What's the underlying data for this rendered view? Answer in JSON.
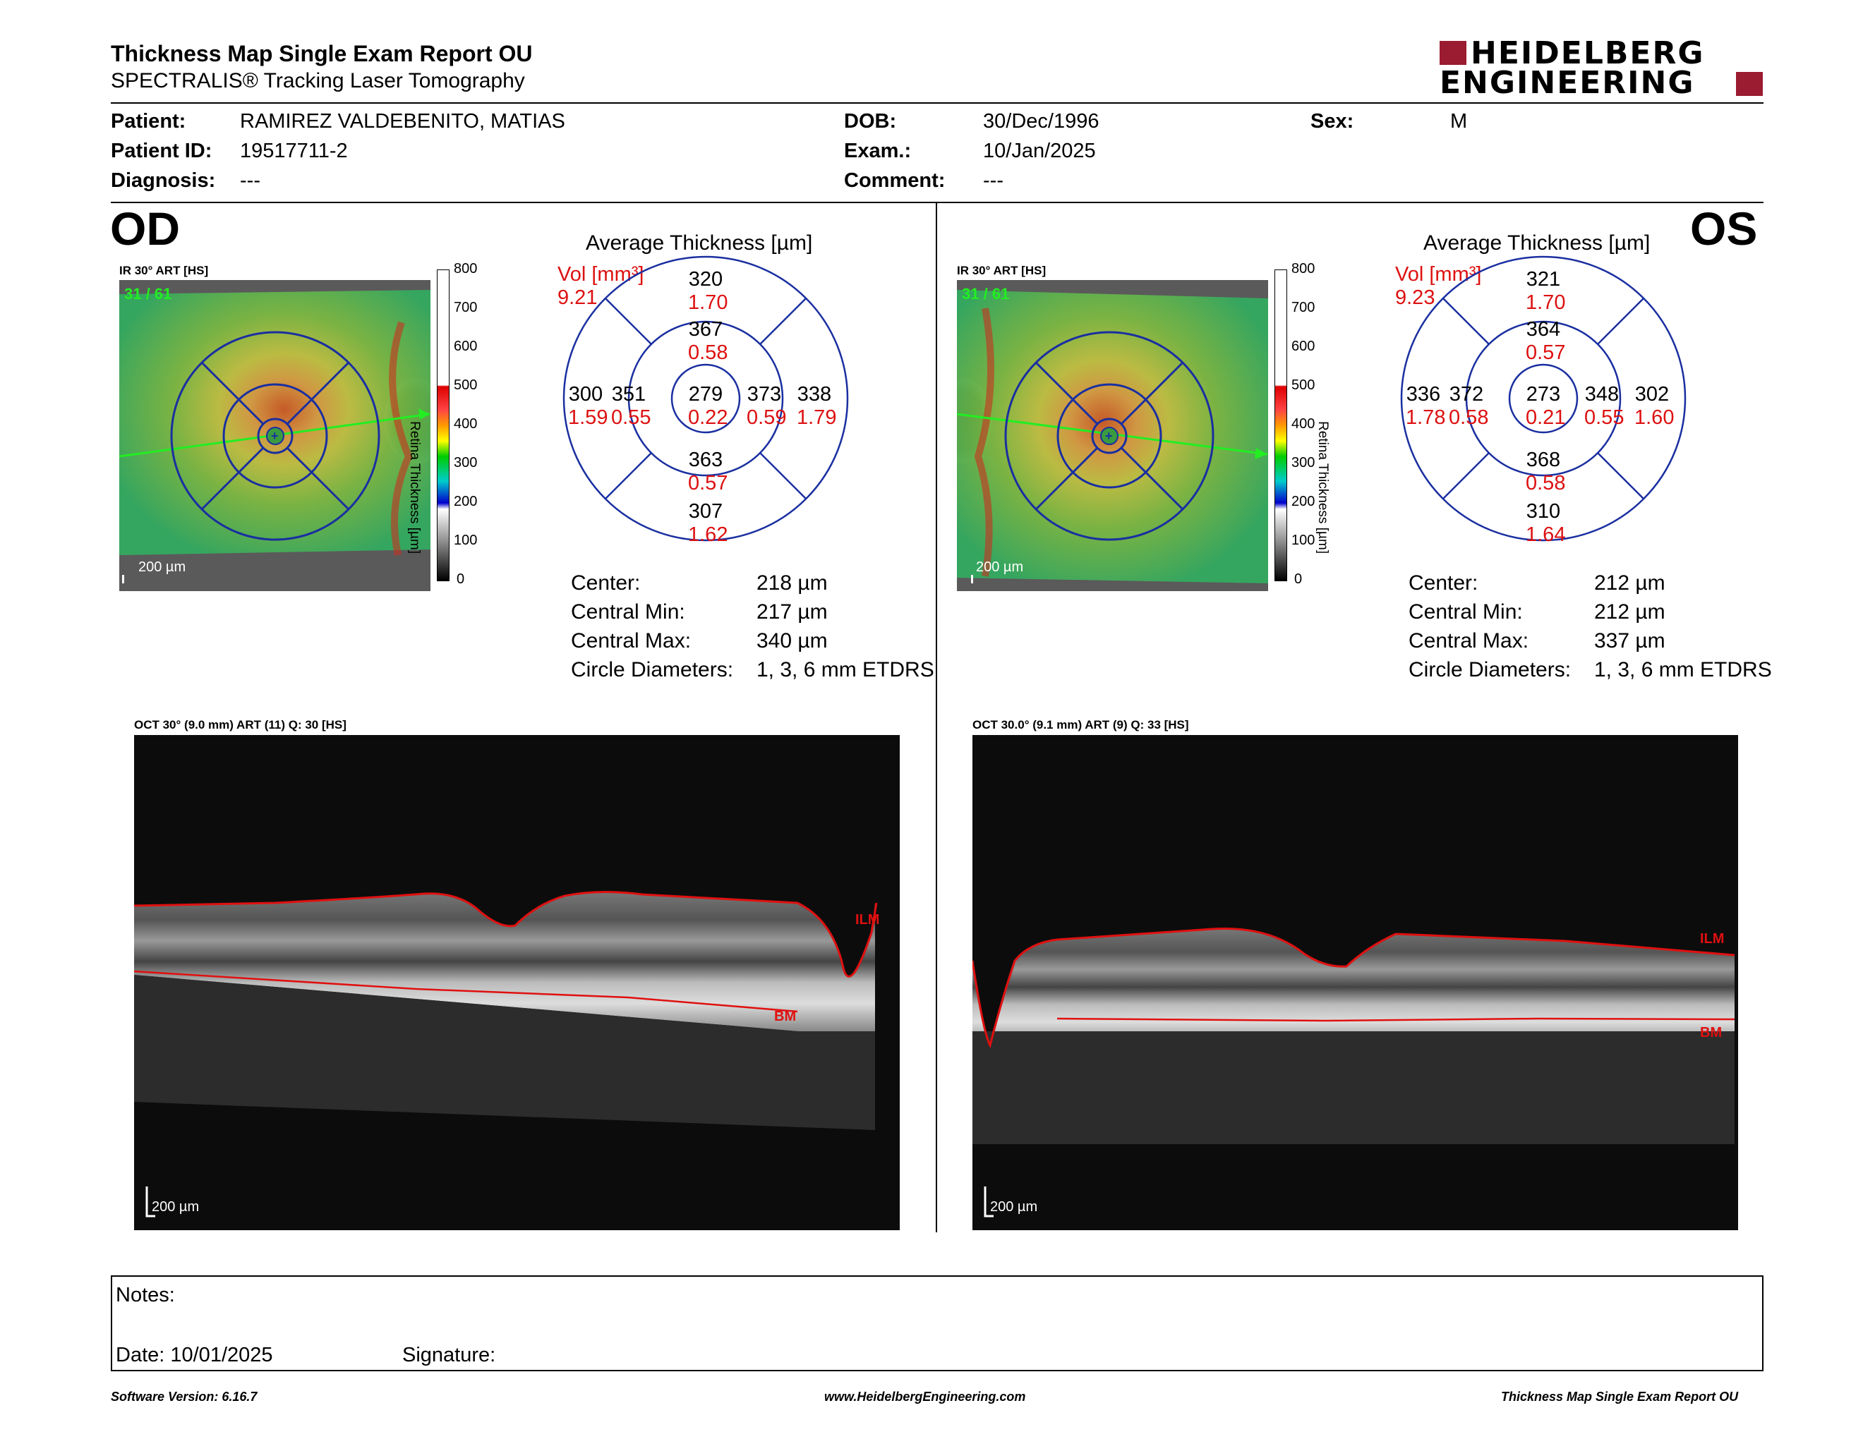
{
  "header": {
    "title": "Thickness Map Single Exam Report OU",
    "subtitle": "SPECTRALIS® Tracking Laser Tomography",
    "logo_line1": "HEIDELBERG",
    "logo_line2": "ENGINEERING",
    "logo_accent": "#9b1b30"
  },
  "patient": {
    "patient_label": "Patient:",
    "patient_value": "RAMIREZ VALDEBENITO, MATIAS",
    "patient_id_label": "Patient ID:",
    "patient_id_value": "19517711-2",
    "diagnosis_label": "Diagnosis:",
    "diagnosis_value": "---",
    "dob_label": "DOB:",
    "dob_value": "30/Dec/1996",
    "exam_label": "Exam.:",
    "exam_value": "10/Jan/2025",
    "comment_label": "Comment:",
    "comment_value": "---",
    "sex_label": "Sex:",
    "sex_value": "M"
  },
  "colorbar": {
    "ticks": [
      "800",
      "700",
      "600",
      "500",
      "400",
      "300",
      "200",
      "100",
      "0"
    ],
    "label": "Retina Thickness [µm]"
  },
  "od": {
    "eye_label": "OD",
    "ir_label": "IR 30° ART [HS]",
    "frame_label": "31 / 61",
    "scale_label": "200 µm",
    "grid_title": "Average Thickness [µm]",
    "vol_label": "Vol [mm³]",
    "vol_value": "9.21",
    "cells": {
      "outer_top": [
        "320",
        "1.70"
      ],
      "inner_top": [
        "367",
        "0.58"
      ],
      "outer_left": [
        "300",
        "1.59"
      ],
      "inner_left": [
        "351",
        "0.55"
      ],
      "center": [
        "279",
        "0.22"
      ],
      "inner_right": [
        "373",
        "0.59"
      ],
      "outer_right": [
        "338",
        "1.79"
      ],
      "inner_bottom": [
        "363",
        "0.57"
      ],
      "outer_bottom": [
        "307",
        "1.62"
      ]
    },
    "summary": {
      "center_label": "Center:",
      "center_value": "218 µm",
      "min_label": "Central Min:",
      "min_value": "217 µm",
      "max_label": "Central Max:",
      "max_value": "340 µm",
      "diam_label": "Circle Diameters:",
      "diam_value": "1, 3, 6 mm ETDRS"
    },
    "oct_label": "OCT 30° (9.0 mm) ART (11) Q: 30 [HS]",
    "oct_scale": "200 µm",
    "ilm": "ILM",
    "bm": "BM"
  },
  "os": {
    "eye_label": "OS",
    "ir_label": "IR 30° ART [HS]",
    "frame_label": "31 / 61",
    "scale_label": "200 µm",
    "grid_title": "Average Thickness [µm]",
    "vol_label": "Vol [mm³]",
    "vol_value": "9.23",
    "cells": {
      "outer_top": [
        "321",
        "1.70"
      ],
      "inner_top": [
        "364",
        "0.57"
      ],
      "outer_left": [
        "336",
        "1.78"
      ],
      "inner_left": [
        "372",
        "0.58"
      ],
      "center": [
        "273",
        "0.21"
      ],
      "inner_right": [
        "348",
        "0.55"
      ],
      "outer_right": [
        "302",
        "1.60"
      ],
      "inner_bottom": [
        "368",
        "0.58"
      ],
      "outer_bottom": [
        "310",
        "1.64"
      ]
    },
    "summary": {
      "center_label": "Center:",
      "center_value": "212 µm",
      "min_label": "Central Min:",
      "min_value": "212 µm",
      "max_label": "Central Max:",
      "max_value": "337 µm",
      "diam_label": "Circle Diameters:",
      "diam_value": "1, 3, 6 mm ETDRS"
    },
    "oct_label": "OCT 30.0° (9.1 mm) ART (9) Q: 33 [HS]",
    "oct_scale": "200 µm",
    "ilm": "ILM",
    "bm": "BM"
  },
  "notes": {
    "notes_label": "Notes:",
    "date_label": "Date: 10/01/2025",
    "signature_label": "Signature:"
  },
  "footer": {
    "software": "Software Version: 6.16.7",
    "website": "www.HeidelbergEngineering.com",
    "report": "Thickness Map Single Exam Report OU"
  },
  "colors": {
    "grid_blue": "#1a2fa0",
    "value_red": "#d11111",
    "ilm_red": "#e01010"
  }
}
